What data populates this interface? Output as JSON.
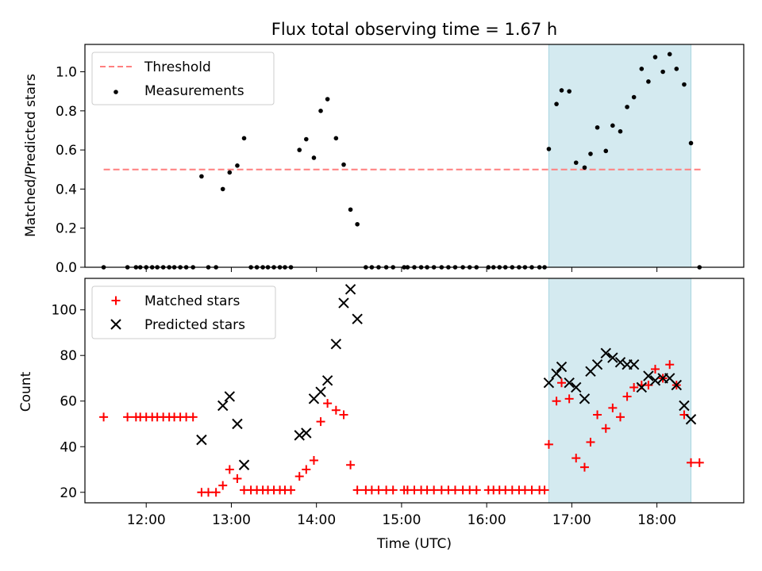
{
  "figure": {
    "title": "Flux total observing time = 1.67 h",
    "xlabel": "Time (UTC)",
    "x_ticks": [
      "12:00",
      "13:00",
      "14:00",
      "15:00",
      "16:00",
      "17:00",
      "18:00"
    ]
  },
  "chart_data": [
    {
      "type": "scatter",
      "panel": "top",
      "ylabel": "Matched/Predicted stars",
      "xlim": [
        11.28,
        19.02
      ],
      "ylim": [
        0,
        1.14
      ],
      "y_ticks": [
        0.0,
        0.2,
        0.4,
        0.6,
        0.8,
        1.0
      ],
      "shaded_interval": [
        16.73,
        18.4
      ],
      "shade_color": "#d4eaf0",
      "legend": {
        "placement": "upper-left",
        "entries": [
          "Threshold",
          "Measurements"
        ]
      },
      "threshold": {
        "name": "Threshold",
        "value": 0.5,
        "x_range": [
          11.5,
          18.52
        ],
        "color": "#ff7f7f",
        "style": "dashed"
      },
      "series": [
        {
          "name": "Measurements",
          "color": "#000000",
          "marker": "dot",
          "points": [
            [
              11.5,
              0.0
            ],
            [
              11.78,
              0.0
            ],
            [
              11.88,
              0.0
            ],
            [
              11.93,
              0.0
            ],
            [
              12.0,
              0.0
            ],
            [
              12.07,
              0.0
            ],
            [
              12.13,
              0.0
            ],
            [
              12.2,
              0.0
            ],
            [
              12.27,
              0.0
            ],
            [
              12.33,
              0.0
            ],
            [
              12.4,
              0.0
            ],
            [
              12.47,
              0.0
            ],
            [
              12.55,
              0.0
            ],
            [
              12.65,
              0.465
            ],
            [
              12.73,
              0.0
            ],
            [
              12.82,
              0.0
            ],
            [
              12.9,
              0.4
            ],
            [
              12.98,
              0.485
            ],
            [
              13.07,
              0.52
            ],
            [
              13.15,
              0.66
            ],
            [
              13.23,
              0.0
            ],
            [
              13.3,
              0.0
            ],
            [
              13.37,
              0.0
            ],
            [
              13.43,
              0.0
            ],
            [
              13.5,
              0.0
            ],
            [
              13.57,
              0.0
            ],
            [
              13.63,
              0.0
            ],
            [
              13.7,
              0.0
            ],
            [
              13.8,
              0.6
            ],
            [
              13.88,
              0.655
            ],
            [
              13.97,
              0.56
            ],
            [
              14.05,
              0.8
            ],
            [
              14.13,
              0.86
            ],
            [
              14.23,
              0.66
            ],
            [
              14.32,
              0.525
            ],
            [
              14.4,
              0.295
            ],
            [
              14.48,
              0.22
            ],
            [
              14.58,
              0.0
            ],
            [
              14.65,
              0.0
            ],
            [
              14.73,
              0.0
            ],
            [
              14.82,
              0.0
            ],
            [
              14.9,
              0.0
            ],
            [
              15.03,
              0.0
            ],
            [
              15.07,
              0.0
            ],
            [
              15.15,
              0.0
            ],
            [
              15.23,
              0.0
            ],
            [
              15.3,
              0.0
            ],
            [
              15.38,
              0.0
            ],
            [
              15.47,
              0.0
            ],
            [
              15.55,
              0.0
            ],
            [
              15.63,
              0.0
            ],
            [
              15.72,
              0.0
            ],
            [
              15.8,
              0.0
            ],
            [
              15.88,
              0.0
            ],
            [
              16.02,
              0.0
            ],
            [
              16.08,
              0.0
            ],
            [
              16.15,
              0.0
            ],
            [
              16.22,
              0.0
            ],
            [
              16.3,
              0.0
            ],
            [
              16.38,
              0.0
            ],
            [
              16.45,
              0.0
            ],
            [
              16.53,
              0.0
            ],
            [
              16.62,
              0.0
            ],
            [
              16.68,
              0.0
            ],
            [
              16.73,
              0.605
            ],
            [
              16.82,
              0.835
            ],
            [
              16.88,
              0.905
            ],
            [
              16.97,
              0.9
            ],
            [
              17.05,
              0.535
            ],
            [
              17.15,
              0.51
            ],
            [
              17.22,
              0.58
            ],
            [
              17.3,
              0.715
            ],
            [
              17.4,
              0.595
            ],
            [
              17.48,
              0.725
            ],
            [
              17.57,
              0.695
            ],
            [
              17.65,
              0.82
            ],
            [
              17.73,
              0.87
            ],
            [
              17.82,
              1.015
            ],
            [
              17.9,
              0.95
            ],
            [
              17.98,
              1.075
            ],
            [
              18.07,
              1.0
            ],
            [
              18.15,
              1.09
            ],
            [
              18.23,
              1.015
            ],
            [
              18.32,
              0.935
            ],
            [
              18.4,
              0.635
            ],
            [
              18.5,
              0.0
            ]
          ]
        }
      ]
    },
    {
      "type": "scatter",
      "panel": "bottom",
      "ylabel": "Count",
      "xlim": [
        11.28,
        19.02
      ],
      "ylim": [
        15.4,
        113.8
      ],
      "y_ticks": [
        20,
        40,
        60,
        80,
        100
      ],
      "shaded_interval": [
        16.73,
        18.4
      ],
      "shade_color": "#d4eaf0",
      "legend": {
        "placement": "upper-left",
        "entries": [
          "Matched stars",
          "Predicted stars"
        ]
      },
      "series": [
        {
          "name": "Matched stars",
          "color": "#ff0000",
          "marker": "plus",
          "points": [
            [
              11.5,
              53
            ],
            [
              11.78,
              53
            ],
            [
              11.88,
              53
            ],
            [
              11.93,
              53
            ],
            [
              12.0,
              53
            ],
            [
              12.07,
              53
            ],
            [
              12.13,
              53
            ],
            [
              12.2,
              53
            ],
            [
              12.27,
              53
            ],
            [
              12.33,
              53
            ],
            [
              12.4,
              53
            ],
            [
              12.47,
              53
            ],
            [
              12.55,
              53
            ],
            [
              12.65,
              20
            ],
            [
              12.73,
              20
            ],
            [
              12.82,
              20
            ],
            [
              12.9,
              23
            ],
            [
              12.98,
              30
            ],
            [
              13.07,
              26
            ],
            [
              13.15,
              21
            ],
            [
              13.23,
              21
            ],
            [
              13.3,
              21
            ],
            [
              13.37,
              21
            ],
            [
              13.43,
              21
            ],
            [
              13.5,
              21
            ],
            [
              13.57,
              21
            ],
            [
              13.63,
              21
            ],
            [
              13.7,
              21
            ],
            [
              13.8,
              27
            ],
            [
              13.88,
              30
            ],
            [
              13.97,
              34
            ],
            [
              14.05,
              51
            ],
            [
              14.13,
              59
            ],
            [
              14.23,
              56
            ],
            [
              14.32,
              54
            ],
            [
              14.4,
              32
            ],
            [
              14.48,
              21
            ],
            [
              14.58,
              21
            ],
            [
              14.65,
              21
            ],
            [
              14.73,
              21
            ],
            [
              14.82,
              21
            ],
            [
              14.9,
              21
            ],
            [
              15.03,
              21
            ],
            [
              15.07,
              21
            ],
            [
              15.15,
              21
            ],
            [
              15.23,
              21
            ],
            [
              15.3,
              21
            ],
            [
              15.38,
              21
            ],
            [
              15.47,
              21
            ],
            [
              15.55,
              21
            ],
            [
              15.63,
              21
            ],
            [
              15.72,
              21
            ],
            [
              15.8,
              21
            ],
            [
              15.88,
              21
            ],
            [
              16.02,
              21
            ],
            [
              16.08,
              21
            ],
            [
              16.15,
              21
            ],
            [
              16.22,
              21
            ],
            [
              16.3,
              21
            ],
            [
              16.38,
              21
            ],
            [
              16.45,
              21
            ],
            [
              16.53,
              21
            ],
            [
              16.62,
              21
            ],
            [
              16.68,
              21
            ],
            [
              16.73,
              41
            ],
            [
              16.82,
              60
            ],
            [
              16.88,
              68
            ],
            [
              16.97,
              61
            ],
            [
              17.05,
              35
            ],
            [
              17.15,
              31
            ],
            [
              17.22,
              42
            ],
            [
              17.3,
              54
            ],
            [
              17.4,
              48
            ],
            [
              17.48,
              57
            ],
            [
              17.57,
              53
            ],
            [
              17.65,
              62
            ],
            [
              17.73,
              66
            ],
            [
              17.82,
              67
            ],
            [
              17.9,
              67
            ],
            [
              17.98,
              74
            ],
            [
              18.07,
              70
            ],
            [
              18.15,
              76
            ],
            [
              18.23,
              67
            ],
            [
              18.32,
              54
            ],
            [
              18.4,
              33
            ],
            [
              18.5,
              33
            ]
          ]
        },
        {
          "name": "Predicted stars",
          "color": "#000000",
          "marker": "x",
          "points": [
            [
              12.65,
              43
            ],
            [
              12.9,
              58
            ],
            [
              12.98,
              62
            ],
            [
              13.07,
              50
            ],
            [
              13.15,
              32
            ],
            [
              13.8,
              45
            ],
            [
              13.88,
              46
            ],
            [
              13.97,
              61
            ],
            [
              14.05,
              64
            ],
            [
              14.13,
              69
            ],
            [
              14.23,
              85
            ],
            [
              14.32,
              103
            ],
            [
              14.4,
              109
            ],
            [
              14.48,
              96
            ],
            [
              16.73,
              68
            ],
            [
              16.82,
              72
            ],
            [
              16.88,
              75
            ],
            [
              16.97,
              68
            ],
            [
              17.05,
              66
            ],
            [
              17.15,
              61
            ],
            [
              17.22,
              73
            ],
            [
              17.3,
              76
            ],
            [
              17.4,
              81
            ],
            [
              17.48,
              79
            ],
            [
              17.57,
              77
            ],
            [
              17.65,
              76
            ],
            [
              17.73,
              76
            ],
            [
              17.82,
              66
            ],
            [
              17.9,
              71
            ],
            [
              17.98,
              69
            ],
            [
              18.07,
              70
            ],
            [
              18.15,
              70
            ],
            [
              18.23,
              67
            ],
            [
              18.32,
              58
            ],
            [
              18.4,
              52
            ]
          ]
        }
      ]
    }
  ]
}
